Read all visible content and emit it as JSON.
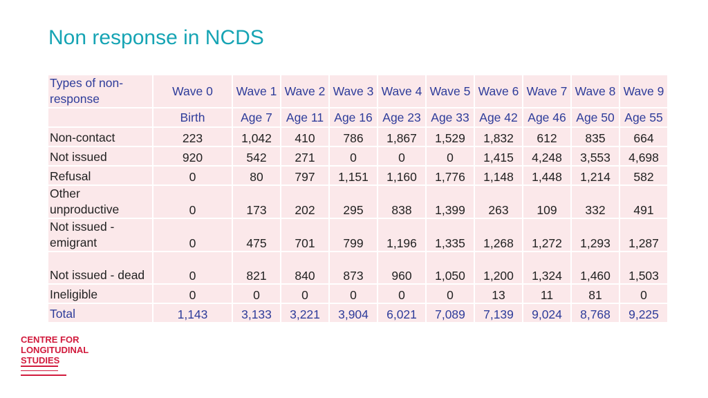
{
  "title": "Non response in NCDS",
  "table": {
    "corner_label": "Types of non-response",
    "waves": [
      "Wave 0",
      "Wave 1",
      "Wave 2",
      "Wave 3",
      "Wave 4",
      "Wave 5",
      "Wave 6",
      "Wave 7",
      "Wave 8",
      "Wave 9"
    ],
    "ages": [
      "Birth",
      "Age 7",
      "Age 11",
      "Age 16",
      "Age 23",
      "Age 33",
      "Age 42",
      "Age 46",
      "Age 50",
      "Age 55"
    ],
    "rows": [
      {
        "label": "Non-contact",
        "values": [
          "223",
          "1,042",
          "410",
          "786",
          "1,867",
          "1,529",
          "1,832",
          "612",
          "835",
          "664"
        ]
      },
      {
        "label": "Not issued",
        "values": [
          "920",
          "542",
          "271",
          "0",
          "0",
          "0",
          "1,415",
          "4,248",
          "3,553",
          "4,698"
        ]
      },
      {
        "label": "Refusal",
        "values": [
          "0",
          "80",
          "797",
          "1,151",
          "1,160",
          "1,776",
          "1,148",
          "1,448",
          "1,214",
          "582"
        ]
      },
      {
        "label": "Other unproductive",
        "values": [
          "0",
          "173",
          "202",
          "295",
          "838",
          "1,399",
          "263",
          "109",
          "332",
          "491"
        ]
      },
      {
        "label": "Not issued - emigrant",
        "values": [
          "0",
          "475",
          "701",
          "799",
          "1,196",
          "1,335",
          "1,268",
          "1,272",
          "1,293",
          "1,287"
        ]
      },
      {
        "label": "Not issued - dead",
        "values": [
          "0",
          "821",
          "840",
          "873",
          "960",
          "1,050",
          "1,200",
          "1,324",
          "1,460",
          "1,503"
        ]
      },
      {
        "label": "Ineligible",
        "values": [
          "0",
          "0",
          "0",
          "0",
          "0",
          "0",
          "13",
          "11",
          "81",
          "0"
        ]
      }
    ],
    "total": {
      "label": "Total",
      "values": [
        "1,143",
        "3,133",
        "3,221",
        "3,904",
        "6,021",
        "7,089",
        "7,139",
        "9,024",
        "8,768",
        "9,225"
      ]
    }
  },
  "logo": {
    "lines": [
      "CENTRE FOR",
      "LONGITUDINAL",
      "STUDIES"
    ]
  },
  "colors": {
    "title": "#16a4b4",
    "header_text": "#2e3c9a",
    "cell_bg": "#fbe8ea",
    "logo": "#d11a3c"
  }
}
